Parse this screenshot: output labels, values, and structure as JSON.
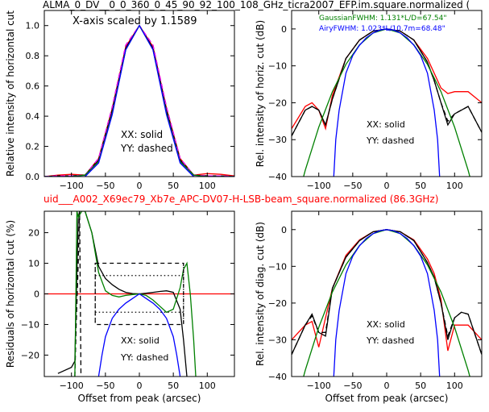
{
  "figure": {
    "title_top": "ALMA_0_DV__0_0_360_0_45_90_92_100_108_GHz_ticra2007_EFP.im.square.normalized (",
    "title_mid": "uid___A002_X69ec79_Xb7e_APC-DV07-H-LSB-beam_square.normalized (86.3GHz)",
    "title_mid_color": "#ff0000"
  },
  "colors": {
    "red": "#ff0000",
    "black": "#000000",
    "green": "#008000",
    "blue": "#0000ff",
    "magenta": "#ff00ff"
  },
  "chart_data": [
    {
      "type": "line",
      "ylabel": "Relative intensity of horizontal cut",
      "xlabel": "",
      "xlim": [
        -140,
        140
      ],
      "ylim": [
        0,
        1.1
      ],
      "xticks": [
        -100,
        -50,
        0,
        50,
        100
      ],
      "yticks": [
        0.0,
        0.2,
        0.4,
        0.6,
        0.8,
        1.0
      ],
      "annotations": [
        "X-axis scaled by 1.1589",
        "XX: solid",
        "YY: dashed"
      ],
      "series": [
        {
          "color": "red",
          "style": "solid",
          "x": [
            -140,
            -120,
            -100,
            -80,
            -60,
            -40,
            -20,
            0,
            20,
            40,
            60,
            80,
            100,
            120,
            140
          ],
          "y": [
            0.0,
            0.01,
            0.015,
            0.01,
            0.12,
            0.45,
            0.86,
            1.0,
            0.86,
            0.45,
            0.12,
            0.01,
            0.02,
            0.015,
            0.005
          ]
        },
        {
          "color": "black",
          "style": "solid",
          "x": [
            -140,
            -120,
            -100,
            -80,
            -60,
            -40,
            -20,
            0,
            20,
            40,
            60,
            80,
            100,
            120,
            140
          ],
          "y": [
            0.0,
            0.005,
            0.005,
            0.01,
            0.11,
            0.44,
            0.85,
            1.0,
            0.85,
            0.44,
            0.11,
            0.01,
            0.005,
            0.005,
            0.0
          ]
        },
        {
          "color": "black",
          "style": "dashed",
          "x": [
            -140,
            -120,
            -100,
            -80,
            -60,
            -40,
            -20,
            0,
            20,
            40,
            60,
            80,
            100,
            120,
            140
          ],
          "y": [
            0.0,
            0.005,
            0.005,
            0.01,
            0.12,
            0.46,
            0.87,
            1.0,
            0.87,
            0.46,
            0.12,
            0.01,
            0.005,
            0.005,
            0.0
          ]
        },
        {
          "color": "magenta",
          "style": "dashed",
          "x": [
            -140,
            -120,
            -100,
            -80,
            -60,
            -40,
            -20,
            0,
            20,
            40,
            60,
            80,
            100,
            120,
            140
          ],
          "y": [
            0.0,
            0.005,
            0.005,
            0.01,
            0.12,
            0.46,
            0.87,
            1.0,
            0.87,
            0.46,
            0.12,
            0.01,
            0.005,
            0.005,
            0.0
          ]
        },
        {
          "color": "green",
          "style": "solid",
          "x": [
            -140,
            -120,
            -100,
            -80,
            -60,
            -40,
            -20,
            0,
            20,
            40,
            60,
            80,
            100,
            120,
            140
          ],
          "y": [
            0.0,
            0.0,
            0.0,
            0.01,
            0.1,
            0.42,
            0.84,
            1.0,
            0.84,
            0.42,
            0.1,
            0.01,
            0.0,
            0.0,
            0.0
          ]
        },
        {
          "color": "blue",
          "style": "solid",
          "x": [
            -140,
            -120,
            -100,
            -80,
            -60,
            -40,
            -20,
            0,
            20,
            40,
            60,
            80,
            100,
            120,
            140
          ],
          "y": [
            0.0,
            0.0,
            0.0,
            0.0,
            0.09,
            0.41,
            0.84,
            1.0,
            0.84,
            0.41,
            0.09,
            0.0,
            0.0,
            0.0,
            0.0
          ]
        }
      ]
    },
    {
      "type": "line",
      "ylabel": "Rel. intensity of horiz. cut (dB)",
      "xlabel": "",
      "xlim": [
        -140,
        140
      ],
      "ylim": [
        -40,
        5
      ],
      "xticks": [
        -100,
        -50,
        0,
        50,
        100
      ],
      "yticks": [
        0,
        -10,
        -20,
        -30,
        -40
      ],
      "annotations": [
        "GaussianFWHM: 1.131*L/D=67.54\"",
        "AiryFWHM: 1.023*L/10.7m=68.48\"",
        "XX: solid",
        "YY: dashed"
      ],
      "series": [
        {
          "color": "red",
          "style": "solid",
          "x": [
            -140,
            -120,
            -110,
            -100,
            -90,
            -80,
            -60,
            -40,
            -20,
            0,
            20,
            40,
            60,
            70,
            80,
            90,
            100,
            120,
            140
          ],
          "y": [
            -27,
            -21,
            -20,
            -22,
            -27,
            -18,
            -8,
            -3,
            -0.6,
            0,
            -0.6,
            -3,
            -8,
            -12,
            -16,
            -17.5,
            -17,
            -17,
            -20
          ]
        },
        {
          "color": "black",
          "style": "solid",
          "x": [
            -140,
            -120,
            -110,
            -100,
            -90,
            -80,
            -60,
            -40,
            -20,
            0,
            20,
            40,
            60,
            70,
            80,
            90,
            100,
            120,
            140
          ],
          "y": [
            -29,
            -22,
            -21,
            -22,
            -26,
            -19,
            -8,
            -3,
            -0.6,
            0,
            -0.6,
            -3,
            -9,
            -14,
            -20,
            -26,
            -23,
            -21,
            -28
          ]
        },
        {
          "color": "black",
          "style": "dashed",
          "x": [
            -140,
            -120,
            -110,
            -100,
            -90,
            -80,
            -60,
            -40,
            -20,
            0,
            20,
            40,
            60,
            70,
            80,
            90,
            100,
            120,
            140
          ],
          "y": [
            -29,
            -22,
            -21,
            -22,
            -26,
            -19,
            -8,
            -3,
            -0.6,
            0,
            -0.6,
            -3,
            -9,
            -14,
            -20,
            -25,
            -23,
            -21,
            -28
          ]
        },
        {
          "color": "green",
          "style": "solid",
          "x": [
            -140,
            -120,
            -100,
            -80,
            -60,
            -40,
            -20,
            0,
            20,
            40,
            60,
            80,
            100,
            120,
            140
          ],
          "y": [
            -52.1,
            -38.3,
            -26.6,
            -17.0,
            -9.6,
            -4.3,
            -1.1,
            0,
            -1.1,
            -4.3,
            -9.6,
            -17.0,
            -26.6,
            -38.3,
            -52.1
          ]
        },
        {
          "color": "blue",
          "style": "solid",
          "x": [
            -78,
            -75,
            -70,
            -60,
            -50,
            -40,
            -30,
            -20,
            -10,
            0,
            10,
            20,
            30,
            40,
            50,
            60,
            70,
            75,
            78
          ],
          "y": [
            -40,
            -30,
            -22,
            -12,
            -7.2,
            -4.4,
            -2.4,
            -1.1,
            -0.3,
            0,
            -0.3,
            -1.1,
            -2.4,
            -4.4,
            -7.2,
            -12,
            -22,
            -30,
            -40
          ]
        }
      ]
    },
    {
      "type": "line",
      "ylabel": "Residuals of horizontal cut (%)",
      "xlabel": "Offset from peak (arcsec)",
      "xlim": [
        -140,
        140
      ],
      "ylim": [
        -27,
        27
      ],
      "xticks": [
        -100,
        -50,
        0,
        50,
        100
      ],
      "yticks": [
        20,
        10,
        0,
        -10,
        -20
      ],
      "annotations": [
        "XX: solid",
        "YY: dashed"
      ],
      "series": [
        {
          "color": "red",
          "style": "solid",
          "x": [
            -140,
            140
          ],
          "y": [
            0,
            0
          ]
        },
        {
          "color": "black",
          "style": "solid",
          "x": [
            -120,
            -100,
            -95,
            -90,
            -85,
            -80,
            -70,
            -60,
            -50,
            -40,
            -30,
            -20,
            -10,
            0,
            10,
            20,
            30,
            40,
            50,
            60,
            65,
            70
          ],
          "y": [
            -26,
            -24,
            -22,
            25,
            30,
            27,
            20,
            9,
            5,
            3,
            1.5,
            0.5,
            0.1,
            0,
            0.2,
            0.5,
            0.8,
            1,
            0.5,
            -5,
            -15,
            -27
          ]
        },
        {
          "color": "black",
          "style": "dashed",
          "x": [
            -95,
            -93,
            -90,
            -88,
            -86
          ],
          "y": [
            -27,
            -10,
            10,
            27,
            -27
          ]
        },
        {
          "color": "green",
          "style": "solid",
          "x": [
            -95,
            -92,
            -90,
            -85,
            -80,
            -70,
            -60,
            -50,
            -40,
            -30,
            -20,
            -10,
            0,
            10,
            20,
            30,
            40,
            50,
            60,
            65,
            70,
            75,
            80,
            83
          ],
          "y": [
            -27,
            27,
            25,
            27,
            27,
            20,
            7,
            1,
            -0.5,
            -1,
            -0.5,
            -0.2,
            0,
            -0.5,
            -2,
            -4,
            -6,
            -5,
            2,
            8,
            10,
            0,
            -15,
            -27
          ]
        },
        {
          "color": "blue",
          "style": "solid",
          "x": [
            -60,
            -55,
            -50,
            -40,
            -30,
            -20,
            -10,
            0,
            10,
            20,
            30,
            40,
            50,
            55,
            60
          ],
          "y": [
            -27,
            -20,
            -14,
            -8,
            -5,
            -3,
            -1.5,
            0,
            -1.5,
            -3,
            -5,
            -8,
            -14,
            -20,
            -27
          ]
        }
      ]
    },
    {
      "type": "line",
      "ylabel": "Rel. intensity of diag. cut (dB)",
      "xlabel": "Offset from peak (arcsec)",
      "xlim": [
        -140,
        140
      ],
      "ylim": [
        -40,
        5
      ],
      "xticks": [
        -100,
        -50,
        0,
        50,
        100
      ],
      "yticks": [
        0,
        -10,
        -20,
        -30,
        -40
      ],
      "annotations": [
        "XX: solid",
        "YY: dashed"
      ],
      "series": [
        {
          "color": "red",
          "style": "solid",
          "x": [
            -140,
            -120,
            -110,
            -100,
            -90,
            -80,
            -60,
            -40,
            -20,
            0,
            20,
            40,
            60,
            70,
            80,
            90,
            100,
            120,
            140
          ],
          "y": [
            -30,
            -26,
            -25,
            -32,
            -24,
            -16,
            -7,
            -2.8,
            -0.6,
            0,
            -0.6,
            -2.8,
            -8,
            -12,
            -19,
            -33,
            -26,
            -26,
            -30
          ]
        },
        {
          "color": "black",
          "style": "solid",
          "x": [
            -140,
            -120,
            -110,
            -100,
            -90,
            -80,
            -60,
            -40,
            -20,
            0,
            20,
            40,
            60,
            70,
            80,
            90,
            100,
            110,
            120,
            140
          ],
          "y": [
            -34,
            -26,
            -23,
            -28,
            -29,
            -16,
            -7.5,
            -3,
            -0.6,
            0,
            -0.6,
            -3,
            -9,
            -13,
            -20,
            -30,
            -24,
            -22.5,
            -23,
            -34
          ]
        },
        {
          "color": "black",
          "style": "dashed",
          "x": [
            -140,
            -120,
            -110,
            -100,
            -90,
            -80,
            -60,
            -40,
            -20,
            0,
            20,
            40,
            60,
            70,
            80,
            90,
            100,
            110,
            120,
            140
          ],
          "y": [
            -34,
            -26,
            -23.5,
            -28,
            -28,
            -16,
            -7.5,
            -3,
            -0.6,
            0,
            -0.6,
            -3,
            -9,
            -13,
            -20,
            -29,
            -24,
            -22.5,
            -23,
            -34
          ]
        },
        {
          "color": "green",
          "style": "solid",
          "x": [
            -140,
            -120,
            -100,
            -80,
            -60,
            -40,
            -20,
            0,
            20,
            40,
            60,
            80,
            100,
            120,
            140
          ],
          "y": [
            -52.1,
            -38.3,
            -26.6,
            -17.0,
            -9.6,
            -4.3,
            -1.1,
            0,
            -1.1,
            -4.3,
            -9.6,
            -17.0,
            -26.6,
            -38.3,
            -52.1
          ]
        },
        {
          "color": "blue",
          "style": "solid",
          "x": [
            -78,
            -75,
            -70,
            -60,
            -50,
            -40,
            -30,
            -20,
            -10,
            0,
            10,
            20,
            30,
            40,
            50,
            60,
            70,
            75,
            78
          ],
          "y": [
            -40,
            -30,
            -22,
            -12,
            -7.2,
            -4.4,
            -2.4,
            -1.1,
            -0.3,
            0,
            -0.3,
            -1.1,
            -2.4,
            -4.4,
            -7.2,
            -12,
            -22,
            -30,
            -40
          ]
        }
      ]
    }
  ]
}
